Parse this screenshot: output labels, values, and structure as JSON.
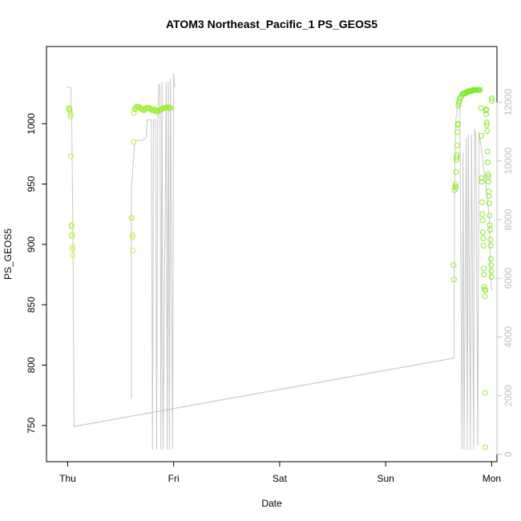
{
  "chart_data": {
    "type": "scatter",
    "title": "ATOM3 Northeast_Pacific_1 PS_GEOS5",
    "xlabel": "Date",
    "ylabel": "PS_GEOS5",
    "x_unit": "days (Thu 00:00 = 0)",
    "x_ticks": [
      {
        "label": "Thu",
        "value": 0
      },
      {
        "label": "Fri",
        "value": 1
      },
      {
        "label": "Sat",
        "value": 2
      },
      {
        "label": "Sun",
        "value": 3
      },
      {
        "label": "Mon",
        "value": 4
      }
    ],
    "xlim": [
      -0.2,
      4.05
    ],
    "ylim": [
      720,
      1064
    ],
    "y_ticks": [
      750,
      800,
      850,
      900,
      950,
      1000
    ],
    "y2lim": [
      -250,
      13900
    ],
    "y2_ticks": [
      0,
      2000,
      4000,
      6000,
      8000,
      10000,
      12000
    ],
    "colors": {
      "grey_line": "#c8c8c8",
      "axis": "#000000",
      "right_axis": "#c0c0c0",
      "scale_low": "#d8f25a",
      "scale_mid": "#a8ef3a",
      "scale_high": "#6fe81e"
    },
    "series": [
      {
        "type": "points",
        "values": [
          [
            0.01,
            1013,
            0.6
          ],
          [
            0.015,
            1012,
            0.55
          ],
          [
            0.02,
            1011,
            0.5
          ],
          [
            0.025,
            1008,
            0.45
          ],
          [
            0.028,
            1006,
            0.4
          ],
          [
            0.03,
            973,
            0.35
          ],
          [
            0.035,
            916,
            0.3
          ],
          [
            0.037,
            915,
            0.3
          ],
          [
            0.04,
            907,
            0.25
          ],
          [
            0.042,
            908,
            0.25
          ],
          [
            0.044,
            898,
            0.2
          ],
          [
            0.046,
            896,
            0.2
          ],
          [
            0.048,
            891,
            0.2
          ],
          [
            0.6,
            922,
            0.25
          ],
          [
            0.605,
            922,
            0.25
          ],
          [
            0.61,
            908,
            0.25
          ],
          [
            0.612,
            906,
            0.25
          ],
          [
            0.615,
            895,
            0.2
          ],
          [
            0.62,
            985,
            0.3
          ],
          [
            0.625,
            1009,
            0.5
          ],
          [
            0.63,
            1012,
            0.55
          ],
          [
            0.64,
            1013,
            0.6
          ],
          [
            0.65,
            1014,
            0.6
          ],
          [
            0.66,
            1014,
            0.6
          ],
          [
            0.67,
            1014,
            0.6
          ],
          [
            0.68,
            1013,
            0.6
          ],
          [
            0.69,
            1013,
            0.6
          ],
          [
            0.7,
            1012,
            0.6
          ],
          [
            0.71,
            1012,
            0.6
          ],
          [
            0.72,
            1011,
            0.6
          ],
          [
            0.73,
            1012,
            0.6
          ],
          [
            0.74,
            1013,
            0.6
          ],
          [
            0.75,
            1013,
            0.6
          ],
          [
            0.76,
            1013,
            0.6
          ],
          [
            0.77,
            1013,
            0.6
          ],
          [
            0.78,
            1012,
            0.6
          ],
          [
            0.79,
            1012,
            0.6
          ],
          [
            0.8,
            1011,
            0.6
          ],
          [
            0.81,
            1011,
            0.6
          ],
          [
            0.82,
            1012,
            0.6
          ],
          [
            0.83,
            1011,
            0.6
          ],
          [
            0.84,
            1010,
            0.6
          ],
          [
            0.85,
            1010,
            0.6
          ],
          [
            0.86,
            1011,
            0.6
          ],
          [
            0.87,
            1011,
            0.6
          ],
          [
            0.88,
            1012,
            0.6
          ],
          [
            0.89,
            1012,
            0.6
          ],
          [
            0.9,
            1013,
            0.6
          ],
          [
            0.91,
            1013,
            0.6
          ],
          [
            0.92,
            1013,
            0.6
          ],
          [
            0.93,
            1013,
            0.6
          ],
          [
            0.94,
            1014,
            0.6
          ],
          [
            0.95,
            1013,
            0.6
          ],
          [
            0.96,
            1013,
            0.6
          ],
          [
            0.97,
            1013,
            0.6
          ],
          [
            3.64,
            883,
            0.65
          ],
          [
            3.645,
            871,
            0.65
          ],
          [
            3.65,
            945,
            0.7
          ],
          [
            3.655,
            948,
            0.7
          ],
          [
            3.66,
            950,
            0.7
          ],
          [
            3.662,
            947,
            0.7
          ],
          [
            3.665,
            960,
            0.7
          ],
          [
            3.668,
            970,
            0.72
          ],
          [
            3.67,
            972,
            0.72
          ],
          [
            3.672,
            974,
            0.72
          ],
          [
            3.675,
            982,
            0.74
          ],
          [
            3.678,
            993,
            0.74
          ],
          [
            3.68,
            999,
            0.75
          ],
          [
            3.683,
            1000,
            0.75
          ],
          [
            3.685,
            1015,
            0.85
          ],
          [
            3.69,
            1017,
            0.85
          ],
          [
            3.695,
            1019,
            0.86
          ],
          [
            3.7,
            1021,
            0.87
          ],
          [
            3.71,
            1022,
            0.88
          ],
          [
            3.72,
            1024,
            0.89
          ],
          [
            3.73,
            1025,
            0.9
          ],
          [
            3.74,
            1025,
            0.9
          ],
          [
            3.75,
            1025,
            0.9
          ],
          [
            3.76,
            1026,
            0.9
          ],
          [
            3.77,
            1026,
            0.9
          ],
          [
            3.78,
            1027,
            0.92
          ],
          [
            3.79,
            1027,
            0.92
          ],
          [
            3.8,
            1027,
            0.92
          ],
          [
            3.81,
            1027,
            0.92
          ],
          [
            3.82,
            1028,
            0.93
          ],
          [
            3.83,
            1028,
            0.93
          ],
          [
            3.84,
            1028,
            0.93
          ],
          [
            3.85,
            1028,
            0.93
          ],
          [
            3.86,
            1028,
            0.93
          ],
          [
            3.87,
            1028,
            0.93
          ],
          [
            3.88,
            1028,
            0.93
          ],
          [
            3.89,
            1028,
            0.93
          ],
          [
            3.9,
            1013,
            0.85
          ],
          [
            3.902,
            990,
            0.8
          ],
          [
            3.905,
            955,
            0.75
          ],
          [
            3.907,
            952,
            0.75
          ],
          [
            3.91,
            935,
            0.75
          ],
          [
            3.912,
            925,
            0.75
          ],
          [
            3.915,
            920,
            0.75
          ],
          [
            3.917,
            910,
            0.75
          ],
          [
            3.92,
            905,
            0.75
          ],
          [
            3.922,
            899,
            0.75
          ],
          [
            3.925,
            880,
            0.75
          ],
          [
            3.927,
            875,
            0.75
          ],
          [
            3.93,
            865,
            0.75
          ],
          [
            3.932,
            863,
            0.75
          ],
          [
            3.935,
            857,
            0.75
          ],
          [
            3.937,
            777,
            0.7
          ],
          [
            3.94,
            732,
            0.7
          ],
          [
            3.942,
            862,
            0.75
          ],
          [
            3.945,
            1011,
            0.85
          ],
          [
            3.948,
            1008,
            0.85
          ],
          [
            3.95,
            1012,
            0.85
          ],
          [
            3.953,
            1001,
            0.8
          ],
          [
            3.955,
            999,
            0.8
          ],
          [
            3.958,
            994,
            0.8
          ],
          [
            3.96,
            977,
            0.8
          ],
          [
            3.963,
            968,
            0.8
          ],
          [
            3.965,
            958,
            0.8
          ],
          [
            3.968,
            956,
            0.8
          ],
          [
            3.97,
            952,
            0.8
          ],
          [
            3.972,
            944,
            0.8
          ],
          [
            3.975,
            940,
            0.8
          ],
          [
            3.977,
            934,
            0.8
          ],
          [
            3.98,
            924,
            0.8
          ],
          [
            3.982,
            916,
            0.8
          ],
          [
            3.985,
            912,
            0.8
          ],
          [
            3.987,
            904,
            0.8
          ],
          [
            3.99,
            899,
            0.8
          ],
          [
            3.992,
            888,
            0.8
          ],
          [
            3.995,
            883,
            0.8
          ],
          [
            3.997,
            878,
            0.8
          ],
          [
            3.999,
            873,
            0.8
          ],
          [
            4.0,
            1021,
            0.85
          ],
          [
            4.002,
            1019,
            0.85
          ]
        ]
      },
      {
        "type": "line",
        "axis": "right",
        "values": [
          [
            0.0,
            12550
          ],
          [
            0.0,
            12500
          ],
          [
            0.03,
            12500
          ],
          [
            0.04,
            11000
          ],
          [
            0.05,
            7000
          ],
          [
            0.06,
            950
          ],
          [
            3.64,
            3280
          ],
          [
            3.645,
            3290
          ],
          [
            3.65,
            8900
          ],
          [
            3.655,
            10600
          ],
          [
            3.66,
            11200
          ],
          [
            3.665,
            11500
          ],
          [
            3.67,
            11500
          ],
          [
            3.675,
            11800
          ],
          [
            3.68,
            11800
          ],
          [
            3.685,
            11900
          ],
          [
            3.7,
            11900
          ],
          [
            3.72,
            160
          ],
          [
            3.73,
            10300
          ],
          [
            3.74,
            160
          ],
          [
            3.76,
            10800
          ],
          [
            3.77,
            160
          ],
          [
            3.78,
            10900
          ],
          [
            3.8,
            160
          ],
          [
            3.81,
            10900
          ],
          [
            3.83,
            160
          ],
          [
            3.84,
            11100
          ],
          [
            3.85,
            10900
          ],
          [
            3.87,
            300
          ],
          [
            3.88,
            11000
          ],
          [
            3.9,
            10500
          ],
          [
            3.95,
            9000
          ],
          [
            3.98,
            8000
          ],
          [
            3.99,
            6000
          ],
          [
            4.0,
            5600
          ]
        ]
      },
      {
        "type": "line",
        "axis": "right",
        "values": [
          [
            0.6,
            1900
          ],
          [
            0.6,
            7000
          ],
          [
            0.6,
            9000
          ],
          [
            0.62,
            10000
          ],
          [
            0.63,
            10550
          ],
          [
            0.65,
            10700
          ],
          [
            0.7,
            10700
          ],
          [
            0.74,
            10800
          ],
          [
            0.75,
            11400
          ],
          [
            0.78,
            11400
          ],
          [
            0.79,
            11400
          ],
          [
            0.8,
            160
          ],
          [
            0.81,
            11400
          ],
          [
            0.83,
            11400
          ],
          [
            0.84,
            160
          ],
          [
            0.85,
            11400
          ],
          [
            0.86,
            12600
          ],
          [
            0.87,
            12600
          ],
          [
            0.88,
            160
          ],
          [
            0.89,
            12700
          ],
          [
            0.9,
            160
          ],
          [
            0.93,
            12700
          ],
          [
            0.94,
            160
          ],
          [
            0.95,
            12700
          ],
          [
            0.96,
            160
          ],
          [
            0.97,
            12800
          ],
          [
            0.99,
            160
          ],
          [
            1.0,
            13000
          ],
          [
            1.01,
            12500
          ]
        ]
      },
      {
        "type": "line",
        "axis": "right",
        "values": [
          [
            0.06,
            950
          ],
          [
            3.64,
            3280
          ]
        ]
      }
    ]
  }
}
